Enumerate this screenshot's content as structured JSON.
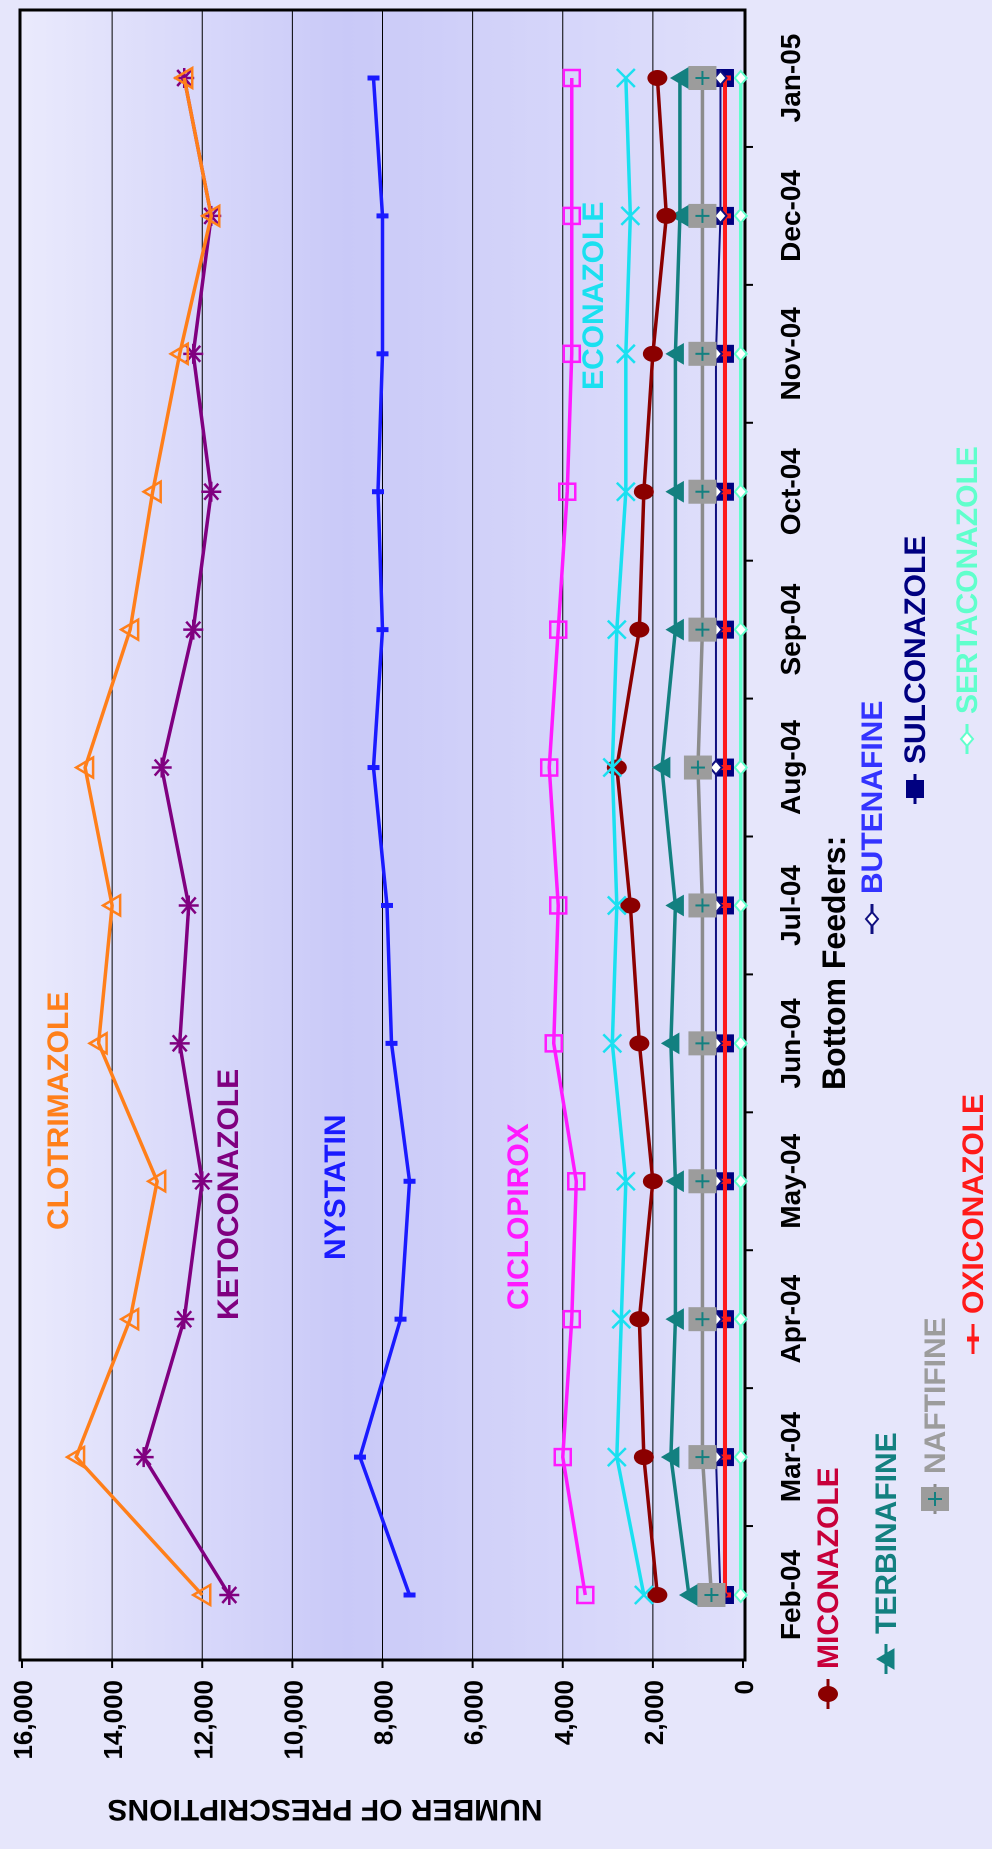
{
  "chart_data": {
    "type": "line",
    "ylabel": "NUMBER OF PRESCRIPTIONS",
    "ylim": [
      0,
      16000
    ],
    "yticks": [
      0,
      2000,
      4000,
      6000,
      8000,
      10000,
      12000,
      14000,
      16000
    ],
    "ytick_labels": [
      "0",
      "2,000",
      "4,000",
      "6,000",
      "8,000",
      "10,000",
      "12,000",
      "14,000",
      "16,000"
    ],
    "grid": true,
    "orientation": "rotated-90-clockwise",
    "categories": [
      "Feb-04",
      "Mar-04",
      "Apr-04",
      "May-04",
      "Jun-04",
      "Jul-04",
      "Aug-04",
      "Sep-04",
      "Oct-04",
      "Nov-04",
      "Dec-04",
      "Jan-05"
    ],
    "series": [
      {
        "name": "CLOTRIMAZOLE",
        "color": "#ff7f1a",
        "marker": "triangle-open",
        "values": [
          12000,
          14800,
          13600,
          13000,
          14300,
          14000,
          14600,
          13600,
          13100,
          12500,
          11800,
          12400
        ]
      },
      {
        "name": "KETOCONAZOLE",
        "color": "#800080",
        "marker": "asterisk",
        "values": [
          11400,
          13300,
          12400,
          12000,
          12500,
          12300,
          12900,
          12200,
          11800,
          12200,
          11800,
          12400
        ]
      },
      {
        "name": "NYSTATIN",
        "color": "#1a1aff",
        "marker": "dash",
        "values": [
          7400,
          8500,
          7600,
          7400,
          7800,
          7900,
          8200,
          8000,
          8100,
          8000,
          8000,
          8200
        ]
      },
      {
        "name": "CICLOPIROX",
        "color": "#ff1aff",
        "marker": "square-open",
        "values": [
          3500,
          4000,
          3800,
          3700,
          4200,
          4100,
          4300,
          4100,
          3900,
          3800,
          3800,
          3800
        ]
      },
      {
        "name": "ECONAZOLE",
        "color": "#1ae0f0",
        "marker": "x",
        "values": [
          2200,
          2800,
          2700,
          2600,
          2900,
          2800,
          2900,
          2800,
          2600,
          2600,
          2500,
          2600
        ]
      },
      {
        "name": "MICONAZOLE",
        "color": "#8b0000",
        "marker": "circle",
        "values": [
          1900,
          2200,
          2300,
          2000,
          2300,
          2500,
          2800,
          2300,
          2200,
          2000,
          1700,
          1900
        ]
      },
      {
        "name": "TERBINAFINE",
        "color": "#138080",
        "marker": "triangle",
        "values": [
          1200,
          1600,
          1500,
          1500,
          1600,
          1500,
          1800,
          1500,
          1500,
          1500,
          1400,
          1400
        ]
      },
      {
        "name": "NAFTIFINE",
        "color": "#8c8c8c",
        "marker": "square-gray",
        "values": [
          700,
          900,
          900,
          900,
          900,
          900,
          1000,
          900,
          900,
          900,
          900,
          900
        ]
      },
      {
        "name": "BUTENAFINE",
        "color": "#101080",
        "marker": "diamond",
        "values": [
          500,
          600,
          600,
          600,
          600,
          600,
          600,
          600,
          600,
          600,
          500,
          500
        ]
      },
      {
        "name": "OXICONAZOLE",
        "color": "#ff1a1a",
        "marker": "dash",
        "values": [
          400,
          400,
          400,
          400,
          400,
          400,
          400,
          400,
          400,
          400,
          400,
          400
        ]
      },
      {
        "name": "SULCONAZOLE",
        "color": "#000080",
        "marker": "square",
        "values": [
          400,
          400,
          400,
          400,
          400,
          400,
          400,
          400,
          400,
          400,
          400,
          400
        ]
      },
      {
        "name": "SERTACONAZOLE",
        "color": "#60ffcc",
        "marker": "diamond",
        "values": [
          50,
          50,
          50,
          50,
          50,
          50,
          50,
          50,
          50,
          50,
          50,
          50
        ]
      }
    ],
    "in_plot_labels": [
      "CLOTRIMAZOLE",
      "KETOCONAZOLE",
      "NYSTATIN",
      "CICLOPIROX",
      "ECONAZOLE"
    ],
    "legend_title": "Bottom Feeders:",
    "legend_items": [
      "MICONAZOLE",
      "TERBINAFINE",
      "NAFTIFINE",
      "OXICONAZOLE",
      "BUTENAFINE",
      "SULCONAZOLE",
      "SERTACONAZOLE"
    ]
  }
}
